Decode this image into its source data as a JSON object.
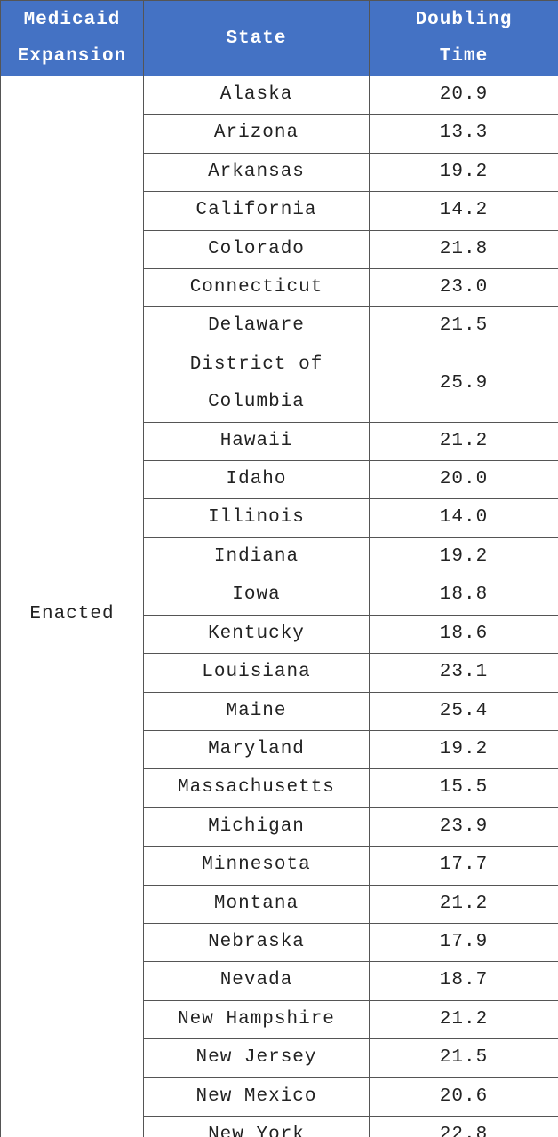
{
  "table": {
    "header": [
      "Medicaid Expansion",
      "State",
      "Doubling Time"
    ],
    "group": "Enacted",
    "rows": [
      [
        "Alaska",
        "20.9"
      ],
      [
        "Arizona",
        "13.3"
      ],
      [
        "Arkansas",
        "19.2"
      ],
      [
        "California",
        "14.2"
      ],
      [
        "Colorado",
        "21.8"
      ],
      [
        "Connecticut",
        "23.0"
      ],
      [
        "Delaware",
        "21.5"
      ],
      [
        "District of Columbia",
        "25.9"
      ],
      [
        "Hawaii",
        "21.2"
      ],
      [
        "Idaho",
        "20.0"
      ],
      [
        "Illinois",
        "14.0"
      ],
      [
        "Indiana",
        "19.2"
      ],
      [
        "Iowa",
        "18.8"
      ],
      [
        "Kentucky",
        "18.6"
      ],
      [
        "Louisiana",
        "23.1"
      ],
      [
        "Maine",
        "25.4"
      ],
      [
        "Maryland",
        "19.2"
      ],
      [
        "Massachusetts",
        "15.5"
      ],
      [
        "Michigan",
        "23.9"
      ],
      [
        "Minnesota",
        "17.7"
      ],
      [
        "Montana",
        "21.2"
      ],
      [
        "Nebraska",
        "17.9"
      ],
      [
        "Nevada",
        "18.7"
      ],
      [
        "New Hampshire",
        "21.2"
      ],
      [
        "New Jersey",
        "21.5"
      ],
      [
        "New Mexico",
        "20.6"
      ],
      [
        "New York",
        "22.8"
      ]
    ]
  }
}
